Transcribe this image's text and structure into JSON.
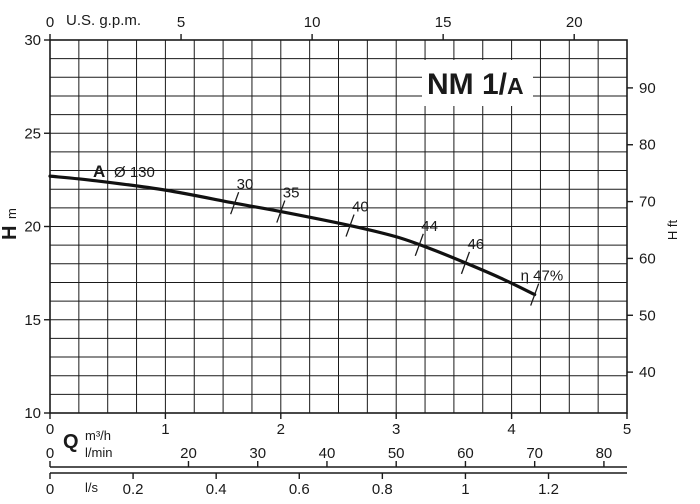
{
  "chart_data": {
    "type": "line",
    "title": "NM 1/A",
    "title_main": "NM 1/",
    "title_sub": "A",
    "left_axis": {
      "label_letter": "H",
      "label_unit": "m",
      "range": [
        10,
        30
      ],
      "ticks": [
        10,
        15,
        20,
        25,
        30
      ]
    },
    "right_axis": {
      "label": "H ft",
      "ticks": [
        40,
        50,
        60,
        70,
        80,
        90
      ]
    },
    "top_axis": {
      "label": "U.S. g.p.m.",
      "ticks": [
        0,
        5,
        10,
        15,
        20
      ]
    },
    "bottom_axes": {
      "q_letter": "Q",
      "m3h": {
        "label": "m³/h",
        "range": [
          0,
          5
        ],
        "ticks": [
          0,
          1,
          2,
          3,
          4,
          5
        ]
      },
      "lmin": {
        "label": "l/min",
        "ticks": [
          0,
          20,
          30,
          40,
          50,
          60,
          70,
          80
        ]
      },
      "ls": {
        "label": "l/s",
        "ticks": [
          0,
          0.2,
          0.4,
          0.6,
          0.8,
          1,
          1.2
        ],
        "tick_labels": [
          "0",
          "0.2",
          "0.4",
          "0.6",
          "0.8",
          "1",
          "1.2"
        ]
      }
    },
    "grid": true,
    "series": [
      {
        "name": "A Ø 130",
        "label_letter": "A",
        "label_text": "Ø 130",
        "x": [
          0,
          0.4,
          1.0,
          1.6,
          2.0,
          2.6,
          3.0,
          3.3,
          3.6,
          3.9,
          4.2
        ],
        "y": [
          22.7,
          22.45,
          21.95,
          21.25,
          20.8,
          20.05,
          19.45,
          18.8,
          18.05,
          17.25,
          16.35
        ]
      }
    ],
    "efficiency_marks": [
      {
        "label": "30",
        "x": 1.6
      },
      {
        "label": "35",
        "x": 2.0
      },
      {
        "label": "40",
        "x": 2.6
      },
      {
        "label": "44",
        "x": 3.2
      },
      {
        "label": "46",
        "x": 3.6
      },
      {
        "label": "η 47%",
        "x": 4.2
      }
    ]
  }
}
